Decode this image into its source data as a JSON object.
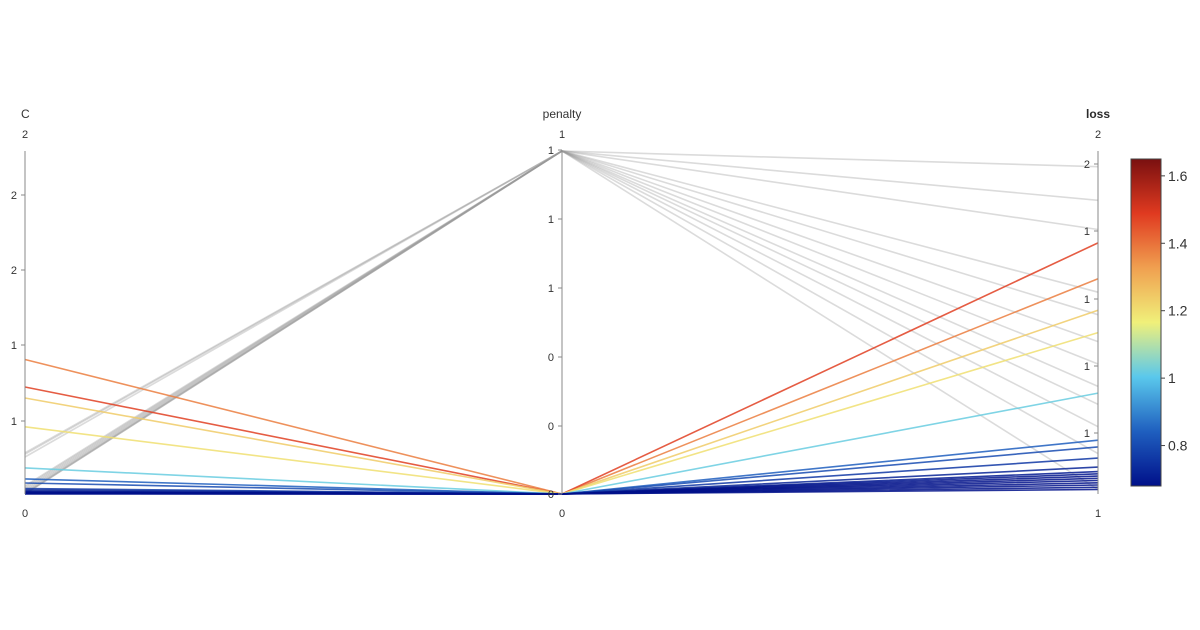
{
  "chart_data": {
    "type": "parcoords",
    "title": "",
    "dimensions": [
      {
        "label": "C",
        "range_label_top": "2",
        "range_label_bottom": "0",
        "tick_labels": [
          "2",
          "2",
          "1",
          "1"
        ],
        "bold": false
      },
      {
        "label": "penalty",
        "range_label_top": "1",
        "range_label_bottom": "0",
        "tick_labels": [
          "1",
          "1",
          "1",
          "0",
          "0",
          "0"
        ],
        "bold": false
      },
      {
        "label": "loss",
        "range_label_top": "2",
        "range_label_bottom": "1",
        "tick_labels": [
          "2",
          "1",
          "1",
          "1",
          "1"
        ],
        "bold": true
      }
    ],
    "lines": [
      {
        "c": 0.98,
        "penalty": 0,
        "loss": 1.68,
        "color_value": 1.38
      },
      {
        "c": 0.78,
        "penalty": 0,
        "loss": 1.84,
        "color_value": 1.48
      },
      {
        "c": 0.7,
        "penalty": 0,
        "loss": 1.54,
        "color_value": 1.24
      },
      {
        "c": 0.49,
        "penalty": 0,
        "loss": 1.44,
        "color_value": 1.2
      },
      {
        "c": 0.19,
        "penalty": 0,
        "loss": 1.17,
        "color_value": 1.02
      },
      {
        "c": 0.11,
        "penalty": 0,
        "loss": 0.96,
        "color_value": 0.84
      },
      {
        "c": 0.08,
        "penalty": 0,
        "loss": 0.93,
        "color_value": 0.8
      },
      {
        "c": 0.04,
        "penalty": 0,
        "loss": 0.88,
        "color_value": 0.76
      },
      {
        "c": 0.03,
        "penalty": 0,
        "loss": 0.84,
        "color_value": 0.72
      },
      {
        "c": 0.02,
        "penalty": 0,
        "loss": 0.82,
        "color_value": 0.7
      },
      {
        "c": 0.015,
        "penalty": 0,
        "loss": 0.81,
        "color_value": 0.69
      },
      {
        "c": 0.01,
        "penalty": 0,
        "loss": 0.8,
        "color_value": 0.68
      },
      {
        "c": 0.01,
        "penalty": 0,
        "loss": 0.79,
        "color_value": 0.68
      },
      {
        "c": 0.005,
        "penalty": 0,
        "loss": 0.78,
        "color_value": 0.68
      },
      {
        "c": 0.005,
        "penalty": 0,
        "loss": 0.77,
        "color_value": 0.68
      },
      {
        "c": 0.003,
        "penalty": 0,
        "loss": 0.76,
        "color_value": 0.68
      },
      {
        "c": 0.002,
        "penalty": 0,
        "loss": 0.75,
        "color_value": 0.68
      },
      {
        "c": 0.0,
        "penalty": 0,
        "loss": 0.74,
        "color_value": 0.68
      },
      {
        "c": 0.3,
        "penalty": 1,
        "loss": 2.18,
        "color_value": null
      },
      {
        "c": 0.29,
        "penalty": 1,
        "loss": 2.03,
        "color_value": null
      },
      {
        "c": 0.27,
        "penalty": 1,
        "loss": 1.9,
        "color_value": null
      },
      {
        "c": 0.06,
        "penalty": 1,
        "loss": 1.62,
        "color_value": null
      },
      {
        "c": 0.05,
        "penalty": 1,
        "loss": 1.52,
        "color_value": null
      },
      {
        "c": 0.04,
        "penalty": 1,
        "loss": 1.4,
        "color_value": null
      },
      {
        "c": 0.03,
        "penalty": 1,
        "loss": 1.3,
        "color_value": null
      },
      {
        "c": 0.02,
        "penalty": 1,
        "loss": 1.2,
        "color_value": null
      },
      {
        "c": 0.01,
        "penalty": 1,
        "loss": 1.12,
        "color_value": null
      },
      {
        "c": 0.005,
        "penalty": 1,
        "loss": 1.02,
        "color_value": null
      },
      {
        "c": 0.0,
        "penalty": 1,
        "loss": 0.9,
        "color_value": null
      },
      {
        "c": 0.0,
        "penalty": 1,
        "loss": 0.74,
        "color_value": null
      }
    ],
    "colorscale": {
      "name": "Jet",
      "min": 0.68,
      "max": 1.65,
      "tick_values": [
        0.8,
        1.0,
        1.2,
        1.4,
        1.6
      ],
      "tick_labels": [
        "0.8",
        "1",
        "1.2",
        "1.4",
        "1.6"
      ],
      "stops": [
        "#00108a",
        "#1f5fbf",
        "#5ac8ec",
        "#f0f07a",
        "#f0a050",
        "#e03a20",
        "#7a1010"
      ]
    },
    "inactive_line_color": "#999999"
  }
}
